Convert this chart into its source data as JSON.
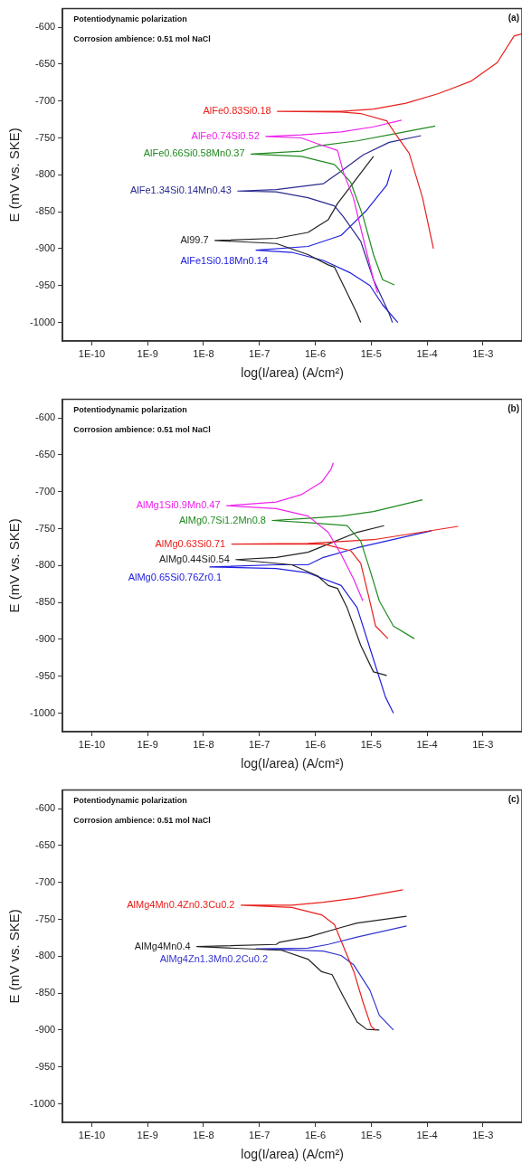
{
  "chart_data": [
    {
      "type": "line",
      "title": "(a)",
      "annotations": [
        "Potentiodynamic polarization",
        "Corrosion ambience: 0.51 mol NaCl"
      ],
      "xlabel": "log(I/area) (A/cm²)",
      "ylabel": "E (mV vs. SKE)",
      "log": "x",
      "marker": "none",
      "xlim": [
        3e-11,
        0.005
      ],
      "xticks": [
        {
          "value": 1e-10,
          "label": "1E-10"
        },
        {
          "value": 1e-09,
          "label": "1E-9"
        },
        {
          "value": 1e-08,
          "label": "1E-8"
        },
        {
          "value": 1e-07,
          "label": "1E-7"
        },
        {
          "value": 1e-06,
          "label": "1E-6"
        },
        {
          "value": 1e-05,
          "label": "1E-5"
        },
        {
          "value": 0.0001,
          "label": "1E-4"
        },
        {
          "value": 0.001,
          "label": "1E-3"
        }
      ],
      "ylim": [
        -1025,
        -575
      ],
      "yticks": [
        -600,
        -650,
        -700,
        -750,
        -800,
        -850,
        -900,
        -950,
        -1000
      ],
      "series": [
        {
          "name": "AlFe0.83Si0.18",
          "color": "#e8201c",
          "x": [
            0.00013,
            8.3e-05,
            4.8e-05,
            2.8e-05,
            1.9e-05,
            6.5e-06,
            2.9e-06,
            2.1e-07,
            2.9e-06,
            1.1e-05,
            4.2e-05,
            0.00016,
            0.00062,
            0.0018,
            0.0036,
            0.005
          ],
          "values": [
            -900,
            -831,
            -771,
            -746,
            -727,
            -717,
            -715,
            -714,
            -714,
            -711,
            -703,
            -690,
            -673,
            -648,
            -612,
            -609
          ]
        },
        {
          "name": "AlFe0.74Si0.52",
          "color": "#ee22ee",
          "x": [
            1.3e-05,
            1.1e-05,
            7.2e-06,
            4.8e-06,
            3.2e-06,
            2.5e-06,
            1.1e-06,
            5.6e-07,
            1.3e-07,
            5.6e-07,
            2.9e-06,
            1.1e-05,
            3.5e-05
          ],
          "values": [
            -960,
            -942,
            -886,
            -831,
            -797,
            -767,
            -758,
            -750,
            -748,
            -746,
            -742,
            -735,
            -726
          ]
        },
        {
          "name": "AlFe0.66Si0.58Mn0.37",
          "color": "#208a20",
          "x": [
            2.6e-05,
            1.6e-05,
            1.1e-05,
            7.2e-06,
            4.3e-06,
            2.2e-06,
            5.6e-07,
            7.1e-08,
            5.6e-07,
            1.1e-06,
            5.6e-06,
            2.8e-05,
            0.00014
          ],
          "values": [
            -949,
            -942,
            -908,
            -857,
            -810,
            -786,
            -775,
            -772,
            -768,
            -761,
            -754,
            -744,
            -734
          ]
        },
        {
          "name": "AlFe1.34Si0.14Mn0.43",
          "color": "#2a2a90",
          "x": [
            2.4e-05,
            2.1e-05,
            1.1e-05,
            6.5e-06,
            3.2e-06,
            2.2e-06,
            7.4e-07,
            2e-07,
            4.1e-08,
            2e-07,
            1.4e-06,
            2.9e-06,
            7.2e-06,
            2.1e-05,
            7.8e-05
          ],
          "values": [
            -1000,
            -988,
            -942,
            -890,
            -857,
            -842,
            -831,
            -823,
            -822,
            -820,
            -812,
            -795,
            -773,
            -756,
            -747
          ]
        },
        {
          "name": "Al99.7",
          "color": "#222222",
          "x": [
            6.5e-06,
            5.6e-06,
            3.2e-06,
            2.2e-06,
            1.7e-06,
            7.4e-07,
            2e-07,
            1.6e-08,
            2e-07,
            7.4e-07,
            1.7e-06,
            2.5e-06,
            4.9e-06,
            1.1e-05
          ],
          "values": [
            -1000,
            -988,
            -950,
            -925,
            -922,
            -908,
            -893,
            -889,
            -886,
            -878,
            -861,
            -839,
            -810,
            -775
          ]
        },
        {
          "name": "AlFe1Si0.18Mn0.14",
          "color": "#2020e0",
          "x": [
            3e-05,
            1.6e-05,
            9.5e-06,
            4.3e-06,
            1.4e-06,
            3.8e-07,
            8.7e-08,
            7.4e-07,
            2.9e-06,
            8.3e-06,
            1.9e-05,
            2.3e-05
          ],
          "values": [
            -1000,
            -976,
            -950,
            -933,
            -916,
            -905,
            -902,
            -897,
            -882,
            -848,
            -814,
            -793
          ]
        }
      ]
    },
    {
      "type": "line",
      "title": "(b)",
      "annotations": [
        "Potentiodynamic polarization",
        "Corrosion ambience: 0.51 mol NaCl"
      ],
      "xlabel": "log(I/area) (A/cm²)",
      "ylabel": "E (mV vs. SKE)",
      "log": "x",
      "marker": "none",
      "xlim": [
        3e-11,
        0.005
      ],
      "xticks": [
        {
          "value": 1e-10,
          "label": "1E-10"
        },
        {
          "value": 1e-09,
          "label": "1E-9"
        },
        {
          "value": 1e-08,
          "label": "1E-8"
        },
        {
          "value": 1e-07,
          "label": "1E-7"
        },
        {
          "value": 1e-06,
          "label": "1E-6"
        },
        {
          "value": 1e-05,
          "label": "1E-5"
        },
        {
          "value": 0.0001,
          "label": "1E-4"
        },
        {
          "value": 0.001,
          "label": "1E-3"
        }
      ],
      "ylim": [
        -1025,
        -575
      ],
      "yticks": [
        -600,
        -650,
        -700,
        -750,
        -800,
        -850,
        -900,
        -950,
        -1000
      ],
      "series": [
        {
          "name": "AlMg1Si0.9Mn0.47",
          "color": "#ee22ee",
          "x": [
            7.1e-06,
            4.9e-06,
            2.9e-06,
            1.7e-06,
            7.4e-07,
            2e-07,
            2.6e-08,
            2e-07,
            5.6e-07,
            1.3e-06,
            1.9e-06,
            2.1e-06
          ],
          "values": [
            -848,
            -819,
            -785,
            -755,
            -733,
            -723,
            -719,
            -714,
            -704,
            -687,
            -670,
            -661
          ]
        },
        {
          "name": "AlMg0.7Si1.2Mn0.8",
          "color": "#208a20",
          "x": [
            5.9e-05,
            2.5e-05,
            1.4e-05,
            9.5e-06,
            6.5e-06,
            3.7e-06,
            7.4e-07,
            1.7e-07,
            7.4e-07,
            2.9e-06,
            1.1e-05,
            8.3e-05
          ],
          "values": [
            -899,
            -882,
            -848,
            -806,
            -767,
            -746,
            -742,
            -739,
            -736,
            -733,
            -727,
            -711
          ]
        },
        {
          "name": "AlMg0.63Si0.71",
          "color": "#e8201c",
          "x": [
            2e-05,
            1.2e-05,
            8.9e-06,
            6.5e-06,
            4.3e-06,
            1.4e-06,
            3.2e-08,
            7.4e-07,
            1.1e-05,
            0.00036
          ],
          "values": [
            -899,
            -882,
            -840,
            -797,
            -780,
            -771,
            -771,
            -770,
            -765,
            -747
          ]
        },
        {
          "name": "AlMg0.44Si0.54",
          "color": "#222222",
          "x": [
            1.9e-05,
            1.1e-05,
            6.5e-06,
            3.7e-06,
            2.5e-06,
            1.7e-06,
            1.1e-06,
            3.8e-07,
            3.8e-08,
            2e-07,
            7.4e-07,
            1.7e-06,
            5.6e-06,
            1.7e-05
          ],
          "values": [
            -949,
            -944,
            -908,
            -857,
            -831,
            -827,
            -814,
            -799,
            -792,
            -789,
            -782,
            -771,
            -755,
            -746
          ]
        },
        {
          "name": "AlMg0.65Si0.76Zr0.1",
          "color": "#2020e0",
          "x": [
            2.5e-05,
            1.8e-05,
            9.5e-06,
            5.6e-06,
            2.9e-06,
            7.4e-07,
            2e-07,
            1.3e-08,
            2e-07,
            7.4e-07,
            1.4e-06,
            5.6e-06,
            0.00012
          ],
          "values": [
            -1000,
            -978,
            -912,
            -857,
            -827,
            -810,
            -804,
            -802,
            -799,
            -799,
            -789,
            -776,
            -753
          ]
        }
      ]
    },
    {
      "type": "line",
      "title": "(c)",
      "annotations": [
        "Potentiodynamic polarization",
        "Corrosion ambience: 0.51 mol NaCl"
      ],
      "xlabel": "log(I/area) (A/cm²)",
      "ylabel": "E (mV vs. SKE)",
      "log": "x",
      "marker": "none",
      "xlim": [
        3e-11,
        0.005
      ],
      "xticks": [
        {
          "value": 1e-10,
          "label": "1E-10"
        },
        {
          "value": 1e-09,
          "label": "1E-9"
        },
        {
          "value": 1e-08,
          "label": "1E-8"
        },
        {
          "value": 1e-07,
          "label": "1E-7"
        },
        {
          "value": 1e-06,
          "label": "1E-6"
        },
        {
          "value": 1e-05,
          "label": "1E-5"
        },
        {
          "value": 0.0001,
          "label": "1E-4"
        },
        {
          "value": 0.001,
          "label": "1E-3"
        }
      ],
      "ylim": [
        -1025,
        -575
      ],
      "yticks": [
        -600,
        -650,
        -700,
        -750,
        -800,
        -850,
        -900,
        -950,
        -1000
      ],
      "series": [
        {
          "name": "AlMg4Mn0.4Zn0.3Cu0.2",
          "color": "#e8201c",
          "x": [
            1.2e-05,
            1e-05,
            7.2e-06,
            4.9e-06,
            3.2e-06,
            2.2e-06,
            1.3e-06,
            3.8e-07,
            4.7e-08,
            3.8e-07,
            1.4e-06,
            5.6e-06,
            3.7e-05
          ],
          "values": [
            -900,
            -895,
            -863,
            -821,
            -787,
            -757,
            -744,
            -734,
            -731,
            -731,
            -727,
            -721,
            -710
          ]
        },
        {
          "name": "AlMg4Mn0.4",
          "color": "#222222",
          "x": [
            1.4e-05,
            8.3e-06,
            5.6e-06,
            3.2e-06,
            2e-06,
            1.3e-06,
            7.4e-07,
            2.5e-07,
            7.6e-09,
            2e-07,
            2.3e-07,
            7.4e-07,
            2.9e-06,
            5.6e-06,
            4.3e-05
          ],
          "values": [
            -900,
            -899,
            -889,
            -855,
            -825,
            -821,
            -804,
            -792,
            -787,
            -784,
            -781,
            -774,
            -761,
            -755,
            -746
          ]
        },
        {
          "name": "AlMg4Zn1.3Mn0.2Cu0.2",
          "color": "#3535d0",
          "x": [
            2.5e-05,
            1.4e-05,
            9.5e-06,
            4.9e-06,
            2.9e-06,
            1.4e-06,
            8.7e-08,
            7.4e-07,
            1.7e-06,
            5.6e-06,
            4.3e-05
          ],
          "values": [
            -900,
            -880,
            -846,
            -812,
            -799,
            -793,
            -790,
            -789,
            -784,
            -774,
            -759
          ]
        }
      ]
    }
  ]
}
